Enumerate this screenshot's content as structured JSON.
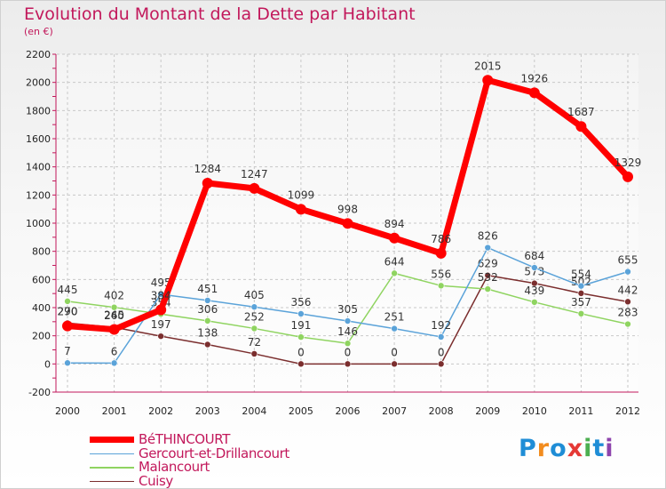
{
  "header": {
    "title": "Evolution du Montant de la Dette par Habitant",
    "subtitle": "(en €)"
  },
  "brand": {
    "text": "Proxiti",
    "colors": [
      "#1f8dd6",
      "#f28c1e",
      "#1f8dd6",
      "#e53935",
      "#4caf50",
      "#1f8dd6",
      "#8e44ad"
    ]
  },
  "chart_data": {
    "type": "line",
    "title": "Evolution du Montant de la Dette par Habitant",
    "ylabel": "(en €)",
    "x": [
      "2000",
      "2001",
      "2002",
      "2003",
      "2004",
      "2005",
      "2006",
      "2007",
      "2008",
      "2009",
      "2010",
      "2011",
      "2012"
    ],
    "ylim": [
      -200,
      2200
    ],
    "yticks": [
      "-200",
      "0",
      "200",
      "400",
      "600",
      "800",
      "1000",
      "1200",
      "1400",
      "1600",
      "1800",
      "2000",
      "2200"
    ],
    "grid": true,
    "legend_position": "bottom",
    "series": [
      {
        "name": "Cuisy",
        "color": "#7b2e2e",
        "values": [
          290,
          260,
          197,
          138,
          72,
          0,
          0,
          0,
          0,
          629,
          573,
          502,
          442
        ],
        "labels": [
          "290",
          "260",
          "197",
          "138",
          "72",
          "0",
          "0",
          "0",
          "0",
          "629",
          "573",
          "502",
          "442"
        ]
      },
      {
        "name": "Malancourt",
        "color": "#8fd460",
        "values": [
          445,
          402,
          354,
          306,
          252,
          191,
          146,
          644,
          556,
          532,
          439,
          357,
          283
        ],
        "labels": [
          "445",
          "402",
          "354",
          "306",
          "252",
          "191",
          "146",
          "644",
          "556",
          "532",
          "439",
          "357",
          "283"
        ]
      },
      {
        "name": "Gercourt-et-Drillancourt",
        "color": "#5ba3d9",
        "values": [
          7,
          6,
          495,
          451,
          405,
          356,
          305,
          251,
          192,
          826,
          684,
          554,
          655
        ],
        "labels": [
          "7",
          "6",
          "495",
          "451",
          "405",
          "356",
          "305",
          "251",
          "192",
          "826",
          "684",
          "554",
          "655"
        ]
      },
      {
        "name": "BéTHINCOURT",
        "color": "#ff0000",
        "values": [
          270,
          245,
          384,
          1284,
          1247,
          1099,
          998,
          894,
          786,
          2015,
          1926,
          1687,
          1329
        ],
        "labels": [
          "270",
          "245",
          "384",
          "1284",
          "1247",
          "1099",
          "998",
          "894",
          "786",
          "2015",
          "1926",
          "1687",
          "1329"
        ]
      }
    ]
  },
  "legend": {
    "items": [
      {
        "label": "BéTHINCOURT",
        "color": "#ff0000",
        "thick": true
      },
      {
        "label": "Gercourt-et-Drillancourt",
        "color": "#5ba3d9",
        "thick": false
      },
      {
        "label": "Malancourt",
        "color": "#8fd460",
        "thick": false
      },
      {
        "label": "Cuisy",
        "color": "#7b2e2e",
        "thick": false
      }
    ]
  }
}
